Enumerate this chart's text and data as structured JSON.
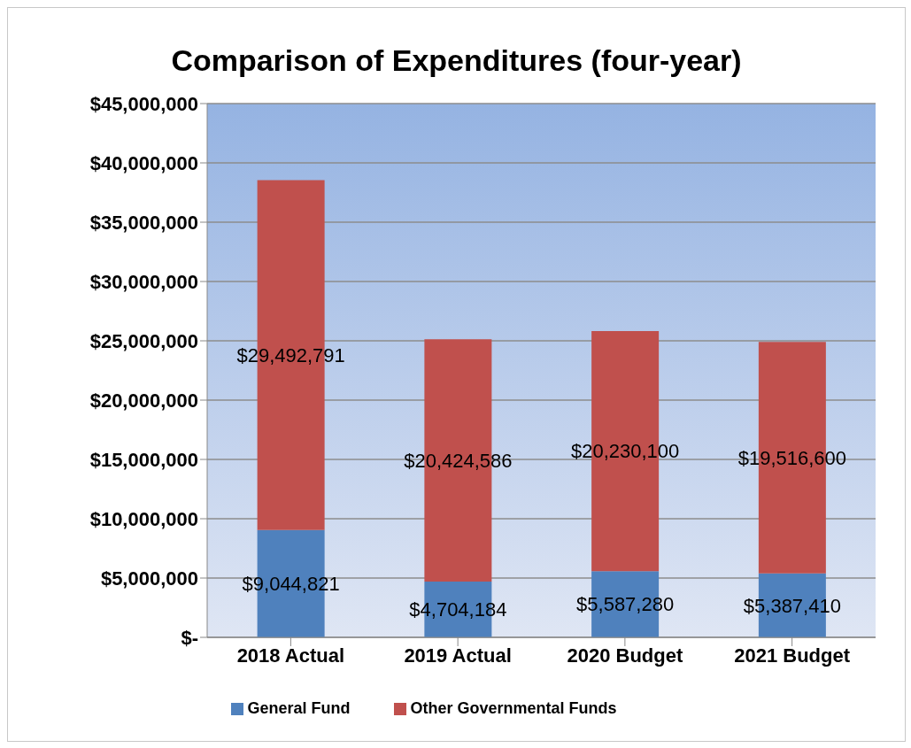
{
  "chart_data": {
    "type": "bar",
    "title": "Comparison of Expenditures (four-year)",
    "stacked": true,
    "categories": [
      "2018 Actual",
      "2019 Actual",
      "2020 Budget",
      "2021 Budget"
    ],
    "series": [
      {
        "name": "General Fund",
        "color": "#4f81bd",
        "values": [
          9044821,
          4704184,
          5587280,
          5387410
        ],
        "value_labels": [
          "$9,044,821",
          "$4,704,184",
          "$5,587,280",
          "$5,387,410"
        ]
      },
      {
        "name": "Other Governmental Funds",
        "color": "#c0504d",
        "values": [
          29492791,
          20424586,
          20230100,
          19516600
        ],
        "value_labels": [
          "$29,492,791",
          "$20,424,586",
          "$20,230,100",
          "$19,516,600"
        ]
      }
    ],
    "ylim": [
      0,
      45000000
    ],
    "yticks": [
      {
        "value": 0,
        "label": "$-"
      },
      {
        "value": 5000000,
        "label": "$5,000,000"
      },
      {
        "value": 10000000,
        "label": "$10,000,000"
      },
      {
        "value": 15000000,
        "label": "$15,000,000"
      },
      {
        "value": 20000000,
        "label": "$20,000,000"
      },
      {
        "value": 25000000,
        "label": "$25,000,000"
      },
      {
        "value": 30000000,
        "label": "$30,000,000"
      },
      {
        "value": 35000000,
        "label": "$35,000,000"
      },
      {
        "value": 40000000,
        "label": "$40,000,000"
      },
      {
        "value": 45000000,
        "label": "$45,000,000"
      }
    ],
    "grid": "y",
    "legend": "bottom"
  }
}
